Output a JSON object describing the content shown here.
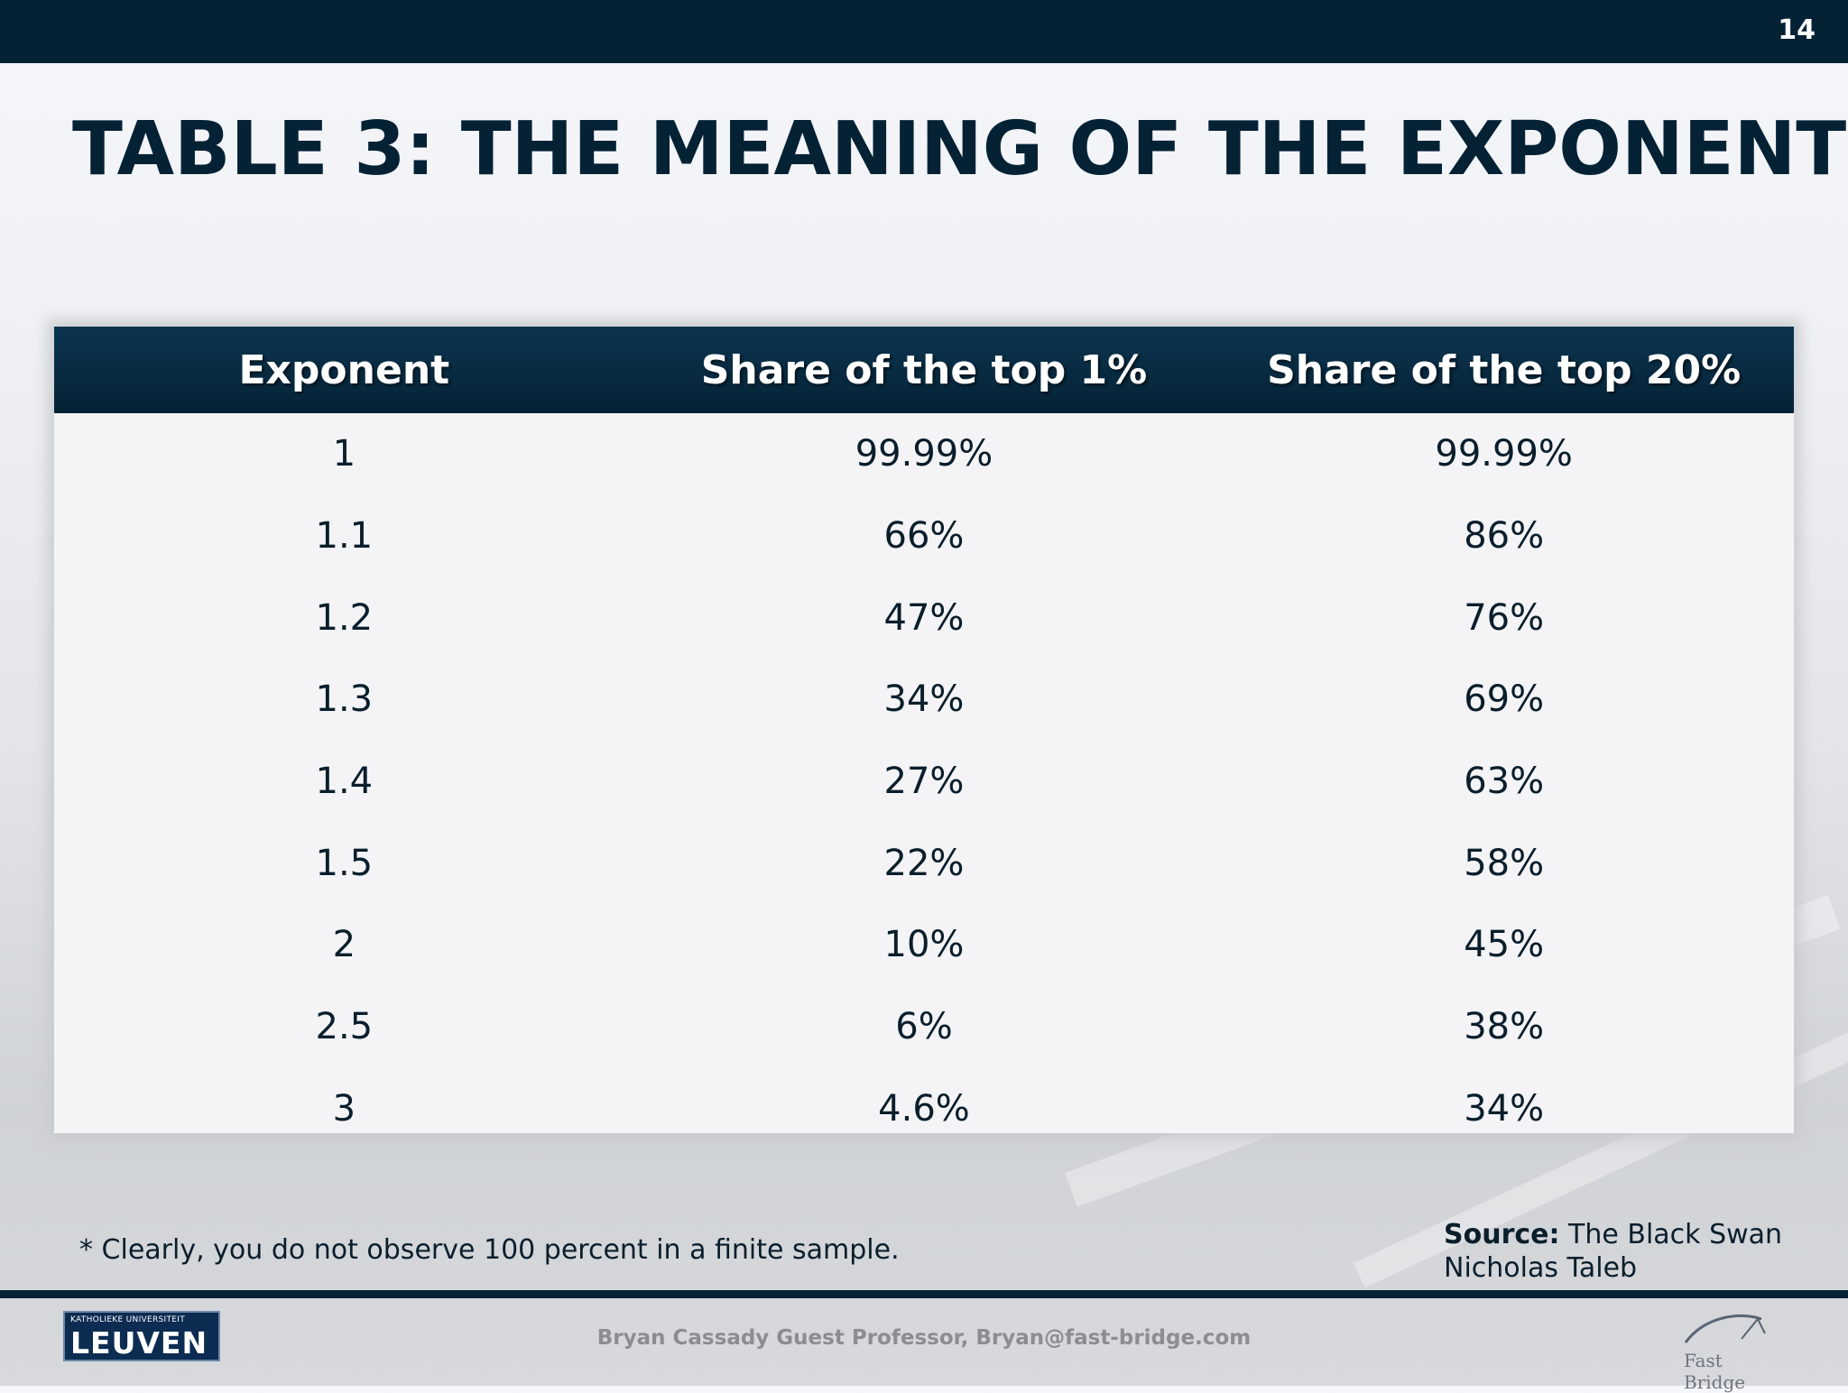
{
  "slide": {
    "number": "14",
    "title": "TABLE 3: THE MEANING OF THE EXPONENT"
  },
  "table": {
    "headers": [
      "Exponent",
      "Share of the top 1%",
      "Share of the top 20%"
    ],
    "rows": [
      [
        "1",
        "99.99%",
        "99.99%"
      ],
      [
        "1.1",
        "66%",
        "86%"
      ],
      [
        "1.2",
        "47%",
        "76%"
      ],
      [
        "1.3",
        "34%",
        "69%"
      ],
      [
        "1.4",
        "27%",
        "63%"
      ],
      [
        "1.5",
        "22%",
        "58%"
      ],
      [
        "2",
        "10%",
        "45%"
      ],
      [
        "2.5",
        "6%",
        "38%"
      ],
      [
        "3",
        "4.6%",
        "34%"
      ]
    ]
  },
  "footnote": "* Clearly, you do not observe 100 percent in a finite sample.",
  "source": {
    "label": "Source:",
    "line1": "The Black Swan",
    "line2": "Nicholas Taleb"
  },
  "footer": {
    "credit": "Bryan Cassady Guest Professor, Bryan@fast-bridge.com",
    "logo_left_small": "KATHOLIEKE UNIVERSITEIT",
    "logo_left_big": "LEUVEN",
    "logo_right": "Fast Bridge"
  },
  "colors": {
    "navy": "#052235",
    "text": "#0a1e2c"
  }
}
